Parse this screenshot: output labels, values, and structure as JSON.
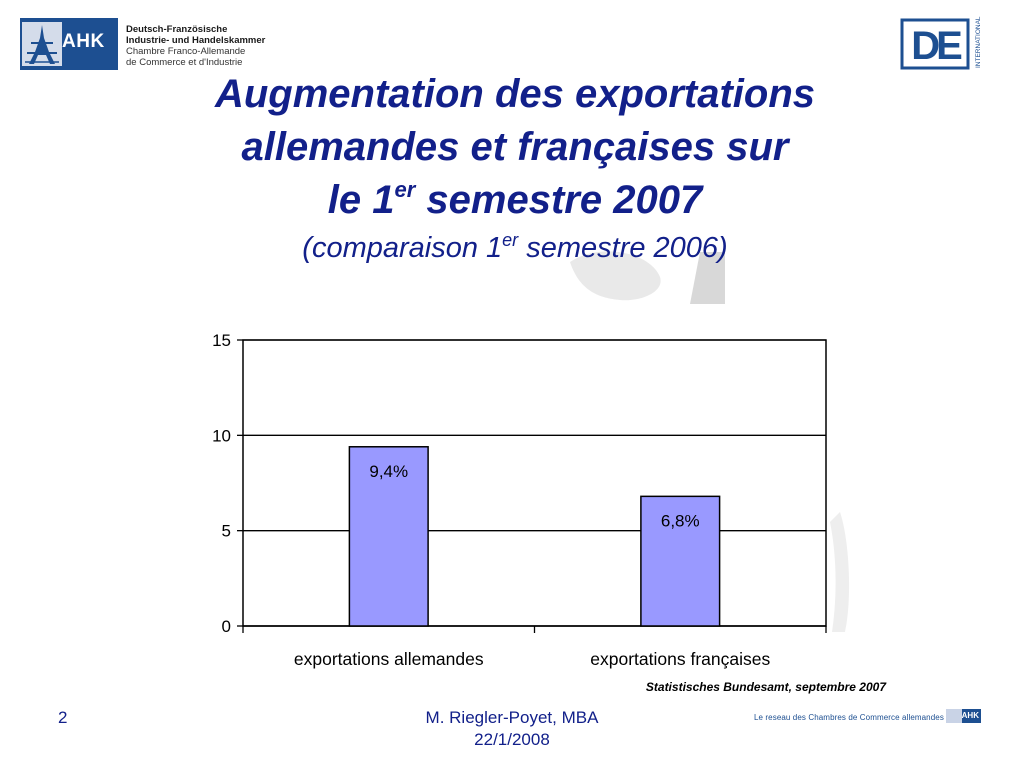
{
  "header": {
    "ahk_logo": {
      "badge_text": "AHK",
      "lines": [
        "Deutsch-Französische",
        "Industrie- und Handelskammer",
        "Chambre Franco-Allemande",
        "de Commerce et d'Industrie"
      ]
    },
    "de_logo": {
      "letters": "DE",
      "side_text": "INTERNATIONAL"
    }
  },
  "slide": {
    "title_line1": "Augmentation des exportations",
    "title_line2": "allemandes et françaises sur",
    "title_line3_pre": "le 1",
    "title_line3_sup": "er",
    "title_line3_post": " semestre 2007",
    "subtitle_pre": "(comparaison 1",
    "subtitle_sup": "er",
    "subtitle_post": " semestre 2006)"
  },
  "chart_data": {
    "type": "bar",
    "categories": [
      "exportations allemandes",
      "exportations françaises"
    ],
    "values": [
      9.4,
      6.8
    ],
    "data_labels": [
      "9,4%",
      "6,8%"
    ],
    "ylim": [
      0,
      15
    ],
    "yticks": [
      0,
      5,
      10,
      15
    ],
    "grid": true,
    "bar_color": "#9999ff",
    "source": "Statistisches Bundesamt, septembre 2007"
  },
  "footer": {
    "page_number": "2",
    "author": "M. Riegler-Poyet, MBA",
    "date": "22/1/2008",
    "network_text": "Le reseau des Chambres de Commerce allemandes",
    "badge_text": "AHK"
  },
  "colors": {
    "title": "#12208a",
    "brand": "#1d4f91"
  }
}
